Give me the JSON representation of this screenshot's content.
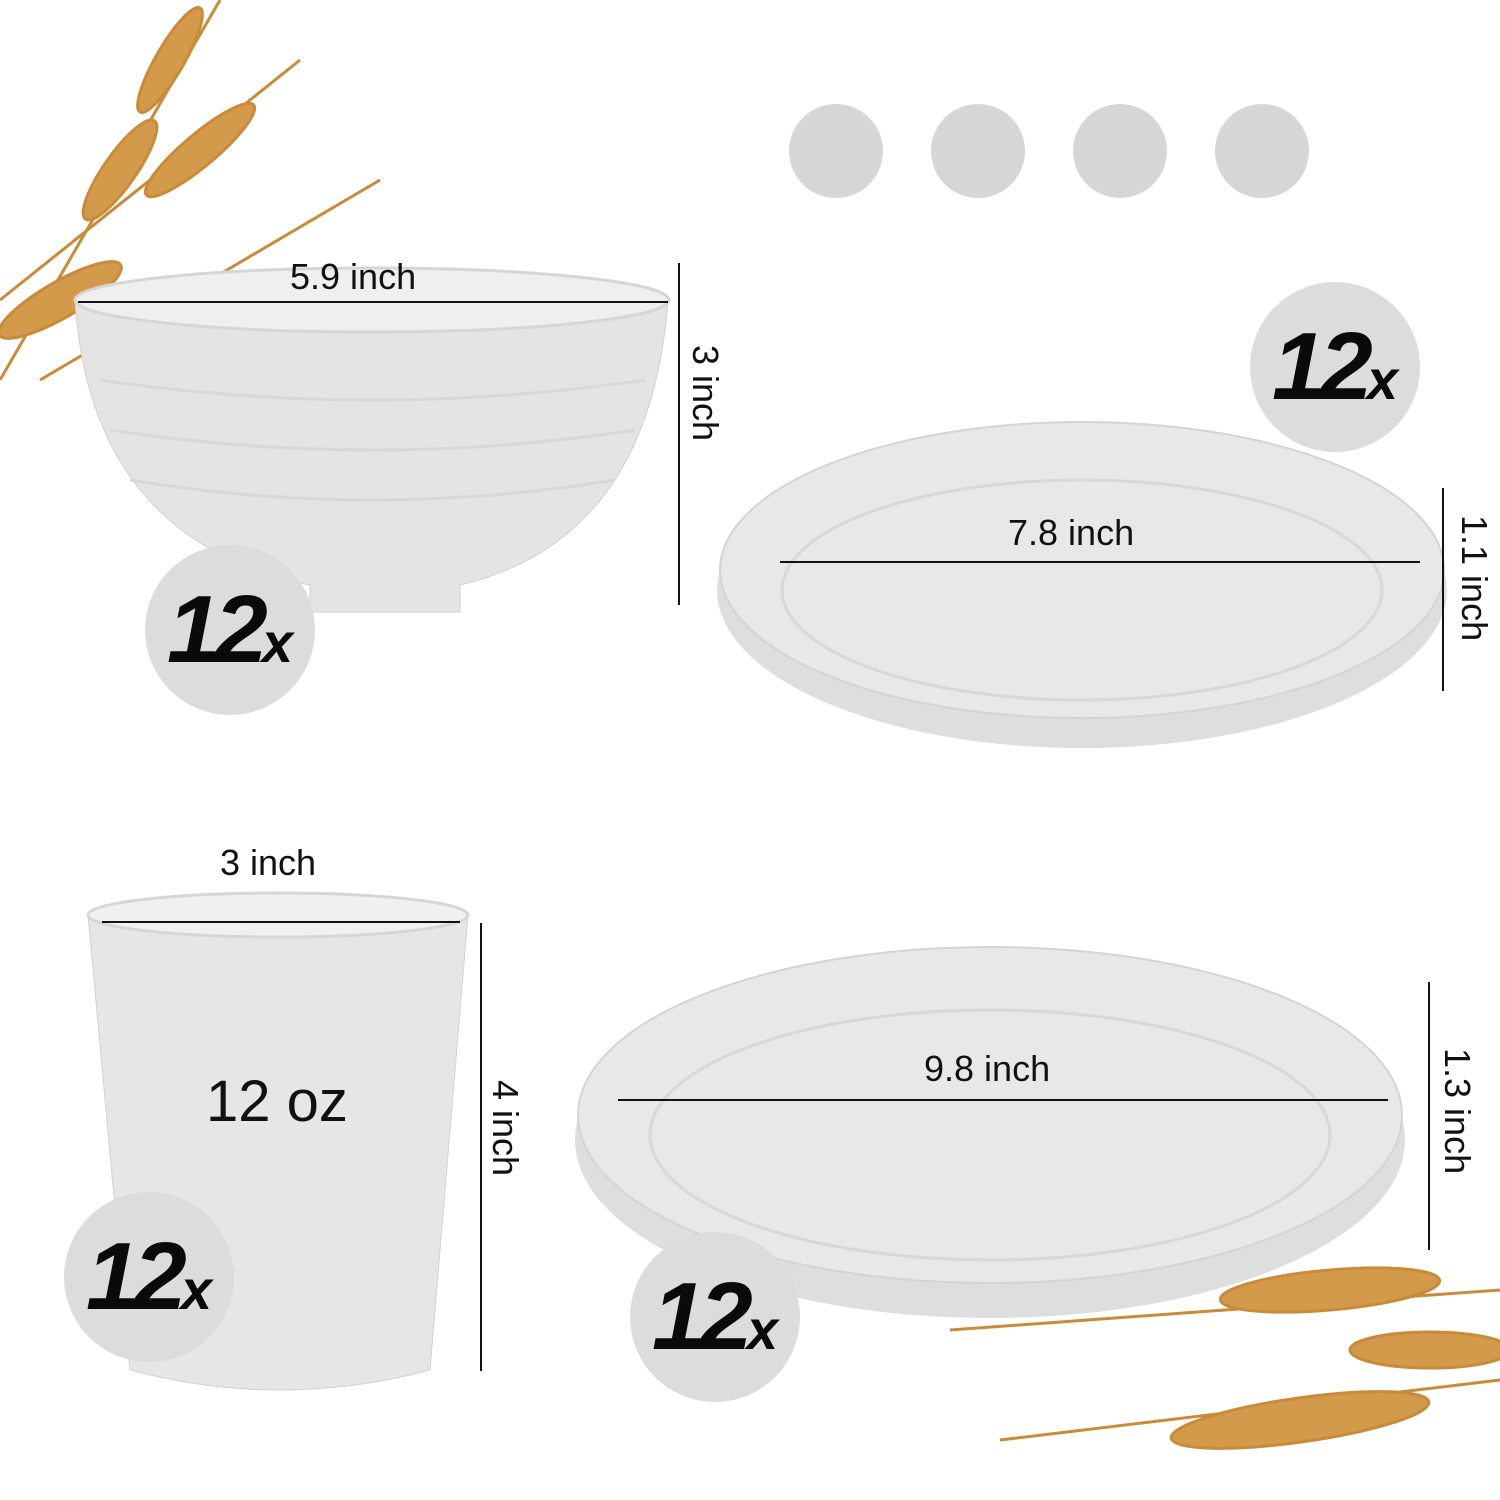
{
  "color_swatches": [
    "#d6d6d6",
    "#d6d6d6",
    "#d6d6d6",
    "#d6d6d6"
  ],
  "bowl": {
    "width_label": "5.9 inch",
    "height_label": "3 inch",
    "count": "12",
    "count_suffix": "x"
  },
  "small_plate": {
    "width_label": "7.8 inch",
    "height_label": "1.1 inch",
    "count": "12",
    "count_suffix": "x"
  },
  "cup": {
    "width_label": "3 inch",
    "capacity_label": "12 oz",
    "height_label": "4 inch",
    "count": "12",
    "count_suffix": "x"
  },
  "large_plate": {
    "width_label": "9.8 inch",
    "height_label": "1.3 inch",
    "count": "12",
    "count_suffix": "x"
  },
  "colors": {
    "product": "#e6e6e6",
    "product_shadow": "#d2d2d2",
    "badge": "#dcdcdc",
    "wheat": "#c98a3a"
  }
}
